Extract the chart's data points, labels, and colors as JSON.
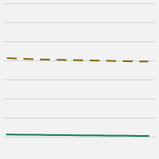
{
  "x": [
    1999,
    2001,
    2003,
    2005,
    2007,
    2009,
    2011,
    2013,
    2015,
    2017,
    2018
  ],
  "smoker_y": [
    3.2,
    3.18,
    3.16,
    3.15,
    3.14,
    3.13,
    3.12,
    3.11,
    3.1,
    3.09,
    3.09
  ],
  "nonsmoker_y": [
    0.7,
    0.69,
    0.69,
    0.68,
    0.68,
    0.67,
    0.67,
    0.66,
    0.66,
    0.65,
    0.65
  ],
  "smoker_color": "#8B6914",
  "nonsmoker_color": "#1A7A6E",
  "background_color": "#F2F2F2",
  "grid_color": "#C8C8C8",
  "ylim": [
    0.0,
    5.0
  ],
  "xlim": [
    1998.5,
    2019.0
  ],
  "line_width": 1.5,
  "grid_linewidth": 0.5,
  "n_gridlines": 9,
  "figsize": [
    2.0,
    2.0
  ],
  "dpi": 100
}
